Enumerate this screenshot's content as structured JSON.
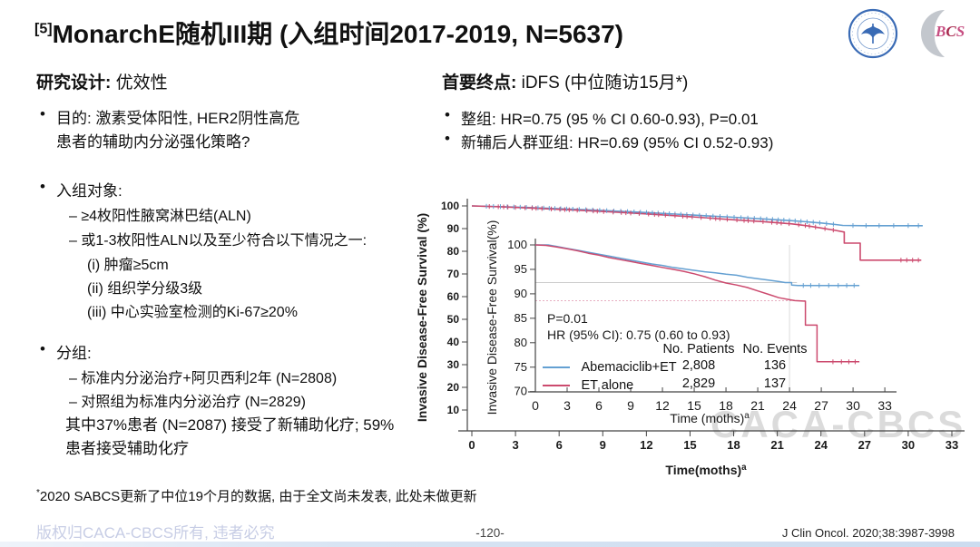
{
  "slide": {
    "title_sup": "[5]",
    "title": "MonarchE随机III期 (入组时间2017-2019, N=5637)",
    "watermark": "CACA-CBCS",
    "footnote_marker": "*",
    "footnote": "2020 SABCS更新了中位19个月的数据, 由于全文尚未发表, 此处未做更新",
    "copyright": "版权归CACA-CBCS所有, 违者必究",
    "page_number": "-120-",
    "citation": "J Clin Oncol. 2020;38:3987-3998"
  },
  "logos": {
    "cbcs": {
      "b": "B",
      "c": "C",
      "s": "S"
    }
  },
  "study_design": {
    "heading_label": "研究设计:",
    "heading_value": "优效性",
    "objective_line1": "目的: 激素受体阳性, HER2阴性高危",
    "objective_line2": "患者的辅助内分泌强化策略?",
    "enroll_heading": "入组对象:",
    "enroll_item1": "–  ≥4枚阳性腋窝淋巴结(ALN)",
    "enroll_item2": "–  或1-3枚阳性ALN以及至少符合以下情况之一:",
    "enroll_sub1": "(i) 肿瘤≥5cm",
    "enroll_sub2": "(ii) 组织学分级3级",
    "enroll_sub3": "(iii) 中心实验室检测的Ki-67≥20%",
    "group_heading": "分组:",
    "group_item1": "–  标准内分泌治疗+阿贝西利2年 (N=2808)",
    "group_item2": "–  对照组为标准内分泌治疗 (N=2829)",
    "group_note_line1": "其中37%患者 (N=2087) 接受了新辅助化疗; 59%",
    "group_note_line2": "患者接受辅助化疗"
  },
  "endpoint": {
    "heading_label": "首要终点:",
    "heading_value": "iDFS (中位随访15月*)",
    "bullet1": "整组: HR=0.75 (95 % CI 0.60-0.93), P=0.01",
    "bullet2": "新辅后人群亚组: HR=0.69 (95% CI 0.52-0.93)"
  },
  "chart_data": {
    "type": "line",
    "subtype": "kaplan-meier",
    "outer": {
      "ylabel": "Invasive Disease-Free Survival (%)",
      "xlabel": "Time(moths)",
      "xlabel_sup": "a",
      "xticks": [
        0,
        3,
        6,
        9,
        12,
        15,
        18,
        21,
        24,
        27,
        30,
        33
      ],
      "yticks": [
        100,
        90,
        80,
        70,
        60,
        50,
        40,
        30,
        20,
        10
      ],
      "xlim": [
        0,
        34
      ],
      "ylim": [
        10,
        100
      ],
      "series": [
        {
          "name": "Abemaciclib+ET",
          "color": "#64a0d2",
          "points": [
            [
              0,
              100
            ],
            [
              2,
              99.7
            ],
            [
              4,
              99.3
            ],
            [
              6,
              98.8
            ],
            [
              8,
              98.3
            ],
            [
              10,
              97.7
            ],
            [
              12,
              97.1
            ],
            [
              14,
              96.4
            ],
            [
              16,
              95.7
            ],
            [
              18,
              95.0
            ],
            [
              20,
              94.3
            ],
            [
              22,
              93.5
            ],
            [
              23,
              93.0
            ],
            [
              24,
              92.5
            ],
            [
              25,
              91.8
            ],
            [
              25.5,
              91.4
            ],
            [
              27,
              91.3
            ],
            [
              31,
              91.3
            ]
          ]
        },
        {
          "name": "ET alone",
          "color": "#cc4a6e",
          "points": [
            [
              0,
              100
            ],
            [
              2,
              99.6
            ],
            [
              4,
              99.1
            ],
            [
              6,
              98.5
            ],
            [
              8,
              97.9
            ],
            [
              10,
              97.2
            ],
            [
              12,
              96.5
            ],
            [
              14,
              95.7
            ],
            [
              16,
              94.8
            ],
            [
              18,
              93.9
            ],
            [
              20,
              93.1
            ],
            [
              22,
              92.1
            ],
            [
              23,
              91.3
            ],
            [
              24,
              90.3
            ],
            [
              25,
              89.2
            ],
            [
              25.6,
              88.5
            ],
            [
              25.6,
              83.6
            ],
            [
              26.7,
              83.6
            ],
            [
              26.7,
              76.1
            ],
            [
              30.9,
              76.1
            ]
          ]
        }
      ]
    },
    "inner": {
      "ylabel": "Invasive Disease-Free Survival(%)",
      "xlabel": "Time (moths)",
      "xlabel_sup": "a",
      "xticks": [
        0,
        3,
        6,
        9,
        12,
        15,
        18,
        21,
        24,
        27,
        30,
        33
      ],
      "yticks": [
        100,
        95,
        90,
        85,
        80,
        75,
        70
      ],
      "xlim": [
        0,
        34
      ],
      "ylim": [
        70,
        100
      ],
      "annotations": {
        "p_value": "P=0.01",
        "hr": "HR (95% CI): 0.75 (0.60 to 0.93)"
      },
      "ref_lines": {
        "vline_month": 24,
        "hline_abemaciclib": 92.3,
        "hline_et": 88.6
      },
      "legend": {
        "col_patients": "No. Patients",
        "col_events": "No. Events",
        "rows": [
          {
            "name": "Abemaciclib+ET",
            "patients": "2,808",
            "events": "136",
            "color": "#64a0d2"
          },
          {
            "name": "ET alone",
            "patients": "2,829",
            "events": "137",
            "color": "#cc4a6e"
          }
        ]
      },
      "series": [
        {
          "name": "Abemaciclib+ET",
          "color": "#64a0d2",
          "points": [
            [
              0,
              100
            ],
            [
              1.2,
              100
            ],
            [
              2,
              99.7
            ],
            [
              3,
              99.3
            ],
            [
              4,
              98.9
            ],
            [
              5,
              98.5
            ],
            [
              6,
              98.1
            ],
            [
              7,
              97.7
            ],
            [
              8,
              97.3
            ],
            [
              9,
              96.9
            ],
            [
              10,
              96.5
            ],
            [
              11,
              96.1
            ],
            [
              12,
              95.8
            ],
            [
              13,
              95.4
            ],
            [
              14,
              95.1
            ],
            [
              15,
              94.8
            ],
            [
              16,
              94.5
            ],
            [
              17,
              94.3
            ],
            [
              18,
              94.0
            ],
            [
              19,
              93.8
            ],
            [
              20,
              93.4
            ],
            [
              21,
              93.1
            ],
            [
              22,
              92.8
            ],
            [
              23,
              92.5
            ],
            [
              23.6,
              92.3
            ],
            [
              24.2,
              92.3
            ],
            [
              24.2,
              91.8
            ],
            [
              24.8,
              91.7
            ],
            [
              30.6,
              91.7
            ]
          ]
        },
        {
          "name": "ET alone",
          "color": "#cc4a6e",
          "points": [
            [
              0,
              100
            ],
            [
              1,
              99.9
            ],
            [
              2,
              99.6
            ],
            [
              3,
              99.2
            ],
            [
              4,
              98.8
            ],
            [
              5,
              98.3
            ],
            [
              6,
              97.9
            ],
            [
              7,
              97.4
            ],
            [
              8,
              97.0
            ],
            [
              9,
              96.6
            ],
            [
              10,
              96.2
            ],
            [
              11,
              95.8
            ],
            [
              12,
              95.4
            ],
            [
              13,
              95.0
            ],
            [
              14,
              94.6
            ],
            [
              15,
              94.1
            ],
            [
              16,
              93.5
            ],
            [
              17,
              92.8
            ],
            [
              18,
              92.2
            ],
            [
              19,
              91.8
            ],
            [
              20,
              91.3
            ],
            [
              21,
              90.6
            ],
            [
              22,
              89.9
            ],
            [
              23,
              89.2
            ],
            [
              24,
              88.8
            ],
            [
              24.5,
              88.6
            ],
            [
              25.5,
              88.5
            ],
            [
              25.5,
              83.6
            ],
            [
              26.6,
              83.6
            ],
            [
              26.6,
              76.1
            ],
            [
              30.6,
              76.1
            ]
          ]
        }
      ]
    }
  }
}
